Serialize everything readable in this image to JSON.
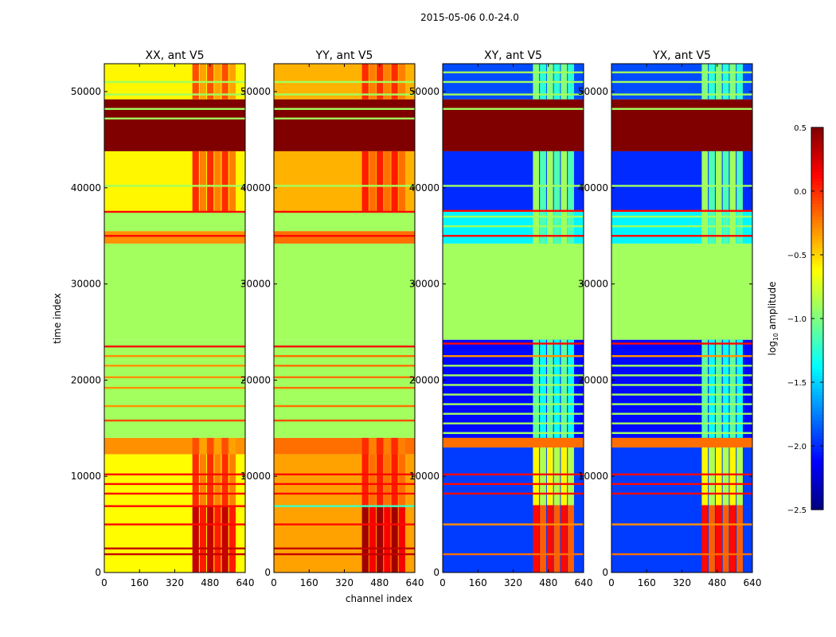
{
  "chart_data": {
    "type": "heatmap",
    "suptitle": "2015-05-06 0.0-24.0",
    "xlabel": "channel index",
    "ylabel": "time index",
    "xlim": [
      0,
      640
    ],
    "ylim": [
      0,
      52900
    ],
    "xticks": [
      0,
      160,
      320,
      480,
      640
    ],
    "yticks": [
      0,
      10000,
      20000,
      30000,
      40000,
      50000
    ],
    "colorbar": {
      "label_main": "log",
      "label_sub": "10",
      "label_rest": " amplitude",
      "colormap": "jet",
      "range": [
        -2.5,
        0.5
      ],
      "ticks": [
        "0.5",
        "0.0",
        "−0.5",
        "−1.0",
        "−1.5",
        "−2.0",
        "−2.5"
      ],
      "tick_values": [
        0.5,
        0.0,
        -0.5,
        -1.0,
        -1.5,
        -2.0,
        -2.5
      ]
    },
    "panels": [
      {
        "title": "XX, ant V5",
        "bands": [
          [
            0,
            12300,
            -0.62
          ],
          [
            12300,
            14000,
            -0.3
          ],
          [
            14000,
            24200,
            -0.9
          ],
          [
            24200,
            34200,
            -0.9
          ],
          [
            34200,
            35500,
            -0.3
          ],
          [
            35500,
            37500,
            -0.9
          ],
          [
            37500,
            43800,
            -0.6
          ],
          [
            43800,
            49200,
            0.5
          ],
          [
            49200,
            52900,
            -0.6
          ]
        ],
        "overlay": {
          "channels": [
            400,
            600
          ],
          "bands": [
            [
              0,
              7000,
              0.3
            ],
            [
              7000,
              12300,
              0.0
            ],
            [
              12300,
              14000,
              -0.1
            ],
            [
              37500,
              43800,
              0.0
            ],
            [
              49200,
              52900,
              -0.1
            ]
          ]
        },
        "lines": [
          [
            1900,
            0.3
          ],
          [
            2500,
            0.3
          ],
          [
            5000,
            0.1
          ],
          [
            6900,
            0.1
          ],
          [
            8200,
            0.1
          ],
          [
            9200,
            0.1
          ],
          [
            10200,
            0.1
          ],
          [
            15800,
            -0.1
          ],
          [
            17300,
            -0.3
          ],
          [
            19200,
            -0.3
          ],
          [
            20300,
            -0.3
          ],
          [
            21500,
            -0.3
          ],
          [
            22500,
            -0.3
          ],
          [
            23500,
            0.1
          ],
          [
            35000,
            0.1
          ],
          [
            37500,
            0.1
          ],
          [
            40200,
            -0.9
          ],
          [
            49700,
            -0.9
          ],
          [
            51000,
            -0.9
          ],
          [
            48200,
            -0.9
          ],
          [
            47200,
            -0.9
          ]
        ]
      },
      {
        "title": "YY, ant V5",
        "bands": [
          [
            0,
            12300,
            -0.35
          ],
          [
            12300,
            14000,
            -0.2
          ],
          [
            14000,
            24200,
            -0.9
          ],
          [
            24200,
            34200,
            -0.9
          ],
          [
            34200,
            35500,
            -0.2
          ],
          [
            35500,
            37500,
            -0.9
          ],
          [
            37500,
            43800,
            -0.4
          ],
          [
            43800,
            49200,
            0.5
          ],
          [
            49200,
            52900,
            -0.4
          ]
        ],
        "overlay": {
          "channels": [
            400,
            600
          ],
          "bands": [
            [
              0,
              7000,
              0.4
            ],
            [
              7000,
              12300,
              0.05
            ],
            [
              12300,
              14000,
              0.0
            ],
            [
              37500,
              43800,
              0.05
            ],
            [
              49200,
              52900,
              0.0
            ]
          ]
        },
        "lines": [
          [
            1900,
            0.3
          ],
          [
            2500,
            0.3
          ],
          [
            5000,
            0.1
          ],
          [
            6900,
            -1.2
          ],
          [
            8200,
            0.1
          ],
          [
            9200,
            0.1
          ],
          [
            10200,
            0.1
          ],
          [
            15800,
            -0.1
          ],
          [
            17300,
            -0.2
          ],
          [
            19200,
            -0.2
          ],
          [
            20300,
            -0.2
          ],
          [
            21500,
            -0.2
          ],
          [
            22500,
            -0.2
          ],
          [
            23500,
            0.1
          ],
          [
            35000,
            0.1
          ],
          [
            37500,
            0.1
          ],
          [
            40200,
            -0.9
          ],
          [
            49700,
            -0.9
          ],
          [
            51000,
            -0.9
          ],
          [
            48200,
            -0.9
          ],
          [
            47200,
            -0.9
          ]
        ]
      },
      {
        "title": "XY, ant V5",
        "bands": [
          [
            0,
            13000,
            -1.95
          ],
          [
            13000,
            14000,
            -0.2
          ],
          [
            14000,
            24200,
            -2.1
          ],
          [
            24200,
            34200,
            -0.9
          ],
          [
            34200,
            37500,
            -1.4
          ],
          [
            37500,
            43800,
            -2.0
          ],
          [
            43800,
            49200,
            0.5
          ],
          [
            49200,
            52900,
            -1.9
          ]
        ],
        "overlay": {
          "channels": [
            410,
            600
          ],
          "bands": [
            [
              0,
              7000,
              0.1
            ],
            [
              7000,
              13000,
              -0.6
            ],
            [
              14000,
              24200,
              -1.1
            ],
            [
              34200,
              43800,
              -0.9
            ],
            [
              49200,
              52900,
              -1.0
            ]
          ]
        },
        "lines": [
          [
            1900,
            -0.2
          ],
          [
            5000,
            -0.3
          ],
          [
            8200,
            0.1
          ],
          [
            9200,
            0.1
          ],
          [
            10200,
            0.1
          ],
          [
            14500,
            -0.9
          ],
          [
            15500,
            -0.9
          ],
          [
            16500,
            -0.9
          ],
          [
            17500,
            -0.9
          ],
          [
            18500,
            -0.9
          ],
          [
            19500,
            -0.9
          ],
          [
            20500,
            -0.9
          ],
          [
            21500,
            -0.9
          ],
          [
            22500,
            -0.3
          ],
          [
            23800,
            0.1
          ],
          [
            35000,
            0.1
          ],
          [
            36000,
            -0.9
          ],
          [
            37000,
            -0.9
          ],
          [
            37600,
            0.1
          ],
          [
            40200,
            -0.9
          ],
          [
            48200,
            -0.9
          ],
          [
            49700,
            -0.9
          ],
          [
            51000,
            -0.9
          ],
          [
            52000,
            -0.9
          ]
        ]
      },
      {
        "title": "YX, ant V5",
        "bands": [
          [
            0,
            13000,
            -1.95
          ],
          [
            13000,
            14000,
            -0.2
          ],
          [
            14000,
            24200,
            -2.1
          ],
          [
            24200,
            34200,
            -0.9
          ],
          [
            34200,
            37500,
            -1.4
          ],
          [
            37500,
            43800,
            -2.0
          ],
          [
            43800,
            49200,
            0.5
          ],
          [
            49200,
            52900,
            -1.9
          ]
        ],
        "overlay": {
          "channels": [
            410,
            600
          ],
          "bands": [
            [
              0,
              7000,
              0.1
            ],
            [
              7000,
              13000,
              -0.6
            ],
            [
              14000,
              24200,
              -1.1
            ],
            [
              34200,
              43800,
              -0.9
            ],
            [
              49200,
              52900,
              -1.0
            ]
          ]
        },
        "lines": [
          [
            1900,
            -0.2
          ],
          [
            5000,
            -0.3
          ],
          [
            8200,
            0.1
          ],
          [
            9200,
            0.1
          ],
          [
            10200,
            0.1
          ],
          [
            14500,
            -0.9
          ],
          [
            15500,
            -0.9
          ],
          [
            16500,
            -0.9
          ],
          [
            17500,
            -0.9
          ],
          [
            18500,
            -0.9
          ],
          [
            19500,
            -0.9
          ],
          [
            20500,
            -0.9
          ],
          [
            21500,
            -0.9
          ],
          [
            22500,
            -0.3
          ],
          [
            23800,
            0.1
          ],
          [
            35000,
            0.1
          ],
          [
            36000,
            -0.9
          ],
          [
            37000,
            -0.9
          ],
          [
            37600,
            0.1
          ],
          [
            40200,
            -0.9
          ],
          [
            48200,
            -0.9
          ],
          [
            49700,
            -0.9
          ],
          [
            51000,
            -0.9
          ],
          [
            52000,
            -0.9
          ]
        ]
      }
    ]
  }
}
